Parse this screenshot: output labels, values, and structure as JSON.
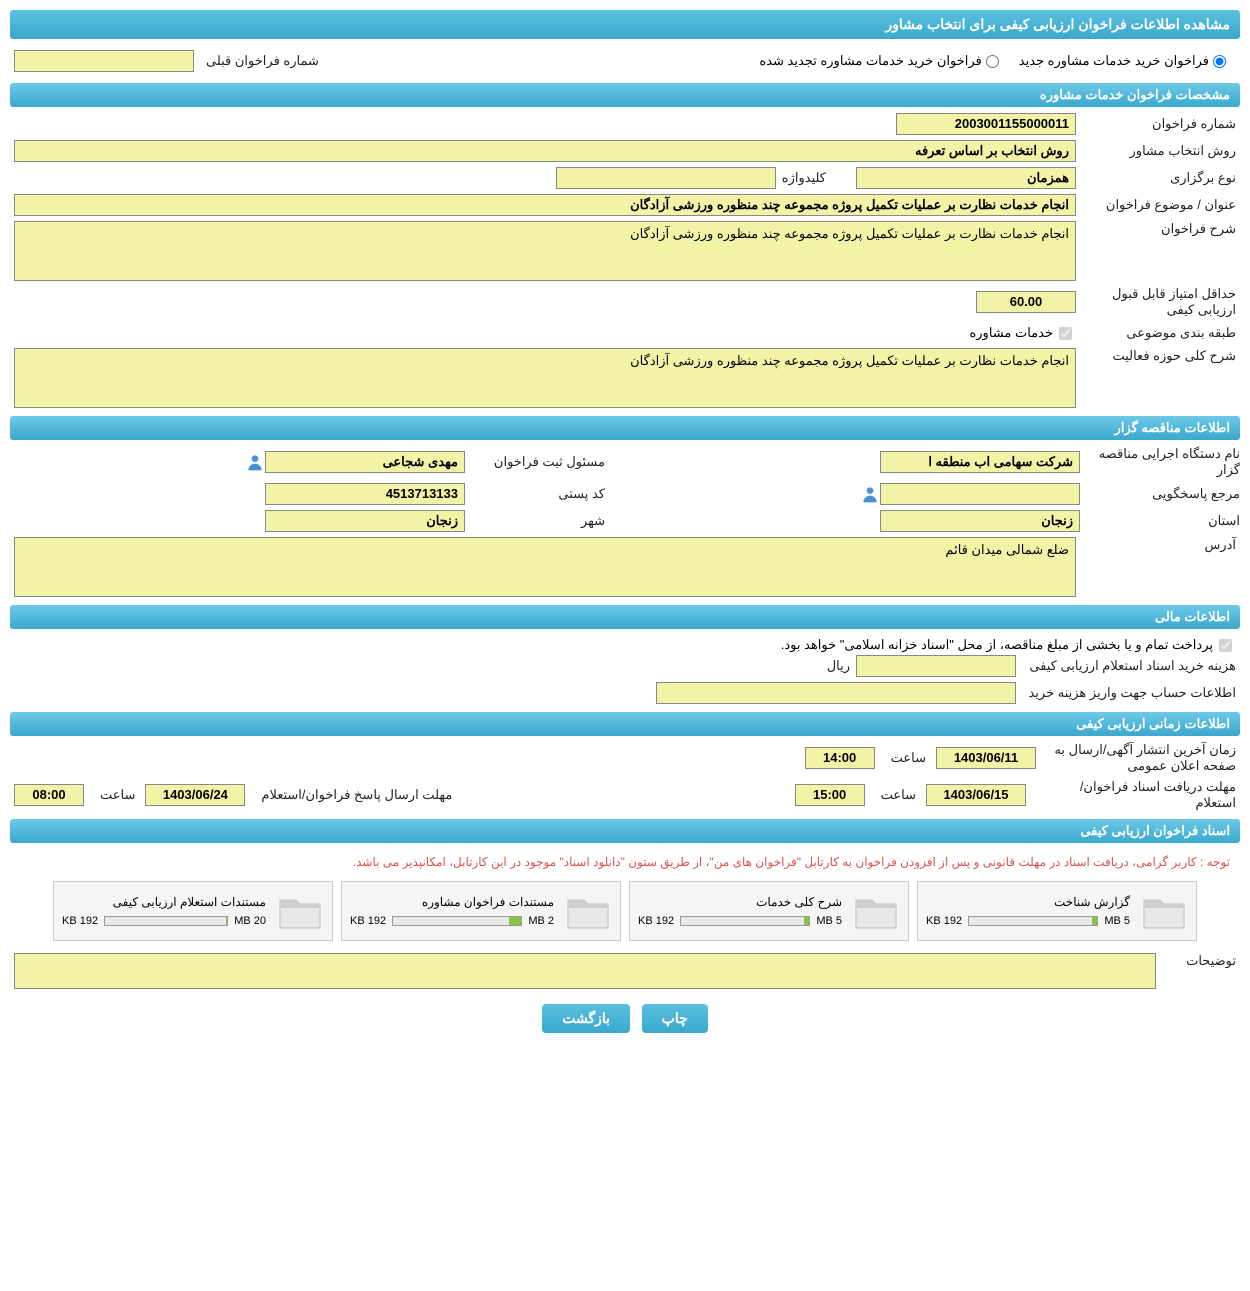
{
  "header": {
    "title": "مشاهده اطلاعات فراخوان ارزیابی کیفی برای انتخاب مشاور"
  },
  "top": {
    "radio_new": "فراخوان خرید خدمات مشاوره جدید",
    "radio_renewed": "فراخوان خرید خدمات مشاوره تجدید شده",
    "prev_number_label": "شماره فراخوان قبلی",
    "prev_number_value": ""
  },
  "sec_specs": {
    "title": "مشخصات فراخوان خدمات مشاوره",
    "number_label": "شماره فراخوان",
    "number_value": "2003001155000011",
    "method_label": "روش انتخاب مشاور",
    "method_value": "روش انتخاب بر اساس تعرفه",
    "type_label": "نوع برگزاری",
    "type_value": "همزمان",
    "keyword_label": "کلیدواژه",
    "keyword_value": "",
    "subject_label": "عنوان / موضوع فراخوان",
    "subject_value": "انجام خدمات نظارت بر عملیات تکمیل پروژه مجموعه چند منظوره ورزشی آزادگان",
    "desc_label": "شرح فراخوان",
    "desc_value": "انجام خدمات نظارت بر عملیات تکمیل پروژه مجموعه چند منظوره ورزشی آزادگان",
    "min_score_label": "حداقل امتیاز قابل قبول ارزیابی کیفی",
    "min_score_value": "60.00",
    "category_label": "طبقه بندی موضوعی",
    "category_checkbox": "خدمات مشاوره",
    "activity_label": "شرح کلی حوزه فعالیت",
    "activity_value": "انجام خدمات نظارت بر عملیات تکمیل پروژه مجموعه چند منظوره ورزشی آزادگان"
  },
  "sec_org": {
    "title": "اطلاعات مناقصه گزار",
    "org_label": "نام دستگاه اجرایی مناقصه گزار",
    "org_value": "شرکت سهامی اب منطقه ا",
    "registrar_label": "مسئول ثبت فراخوان",
    "registrar_value": "مهدی شجاعی",
    "contact_label": "مرجع پاسخگویی",
    "contact_value": "",
    "postal_label": "کد پستی",
    "postal_value": "4513713133",
    "province_label": "استان",
    "province_value": "زنجان",
    "city_label": "شهر",
    "city_value": "زنجان",
    "address_label": "آدرس",
    "address_value": "ضلع شمالی میدان قائم"
  },
  "sec_financial": {
    "title": "اطلاعات مالی",
    "treasury_note": "پرداخت تمام و یا بخشی از مبلغ مناقصه، از محل \"اسناد خزانه اسلامی\" خواهد بود.",
    "fee_label": "هزینه خرید اسناد استعلام ارزیابی کیفی",
    "fee_value": "",
    "rial": "ریال",
    "account_label": "اطلاعات حساب جهت واریز هزینه خرید",
    "account_value": ""
  },
  "sec_time": {
    "title": "اطلاعات زمانی ارزیابی کیفی",
    "publish_label": "زمان آخرین انتشار آگهی/ارسال به صفحه اعلان عمومی",
    "publish_date": "1403/06/11",
    "publish_time_label": "ساعت",
    "publish_time": "14:00",
    "receive_label": "مهلت دریافت اسناد فراخوان/استعلام",
    "receive_date": "1403/06/15",
    "receive_time_label": "ساعت",
    "receive_time": "15:00",
    "reply_label": "مهلت ارسال پاسخ فراخوان/استعلام",
    "reply_date": "1403/06/24",
    "reply_time_label": "ساعت",
    "reply_time": "08:00"
  },
  "sec_docs": {
    "title": "اسناد فراخوان ارزیابی کیفی",
    "notice": "توجه : کاربر گرامی، دریافت اسناد در مهلت قانونی و پس از افزودن فراخوان به کارتابل \"فراخوان های من\"، از طریق ستون \"دانلود اسناد\" موجود در این کارتابل، امکانپذیر می باشد.",
    "docs": [
      {
        "title": "گزارش شناخت",
        "used": "192 KB",
        "max": "5 MB",
        "pct": 4
      },
      {
        "title": "شرح کلی خدمات",
        "used": "192 KB",
        "max": "5 MB",
        "pct": 4
      },
      {
        "title": "مستندات فراخوان مشاوره",
        "used": "192 KB",
        "max": "2 MB",
        "pct": 10
      },
      {
        "title": "مستندات استعلام ارزیابی کیفی",
        "used": "192 KB",
        "max": "20 MB",
        "pct": 1
      }
    ],
    "desc_label": "توضیحات",
    "desc_value": ""
  },
  "buttons": {
    "print": "چاپ",
    "back": "بازگشت"
  },
  "colors": {
    "header_bg": "#3aa8cc",
    "field_bg": "#f3f3a8",
    "notice_color": "#d9534f"
  }
}
